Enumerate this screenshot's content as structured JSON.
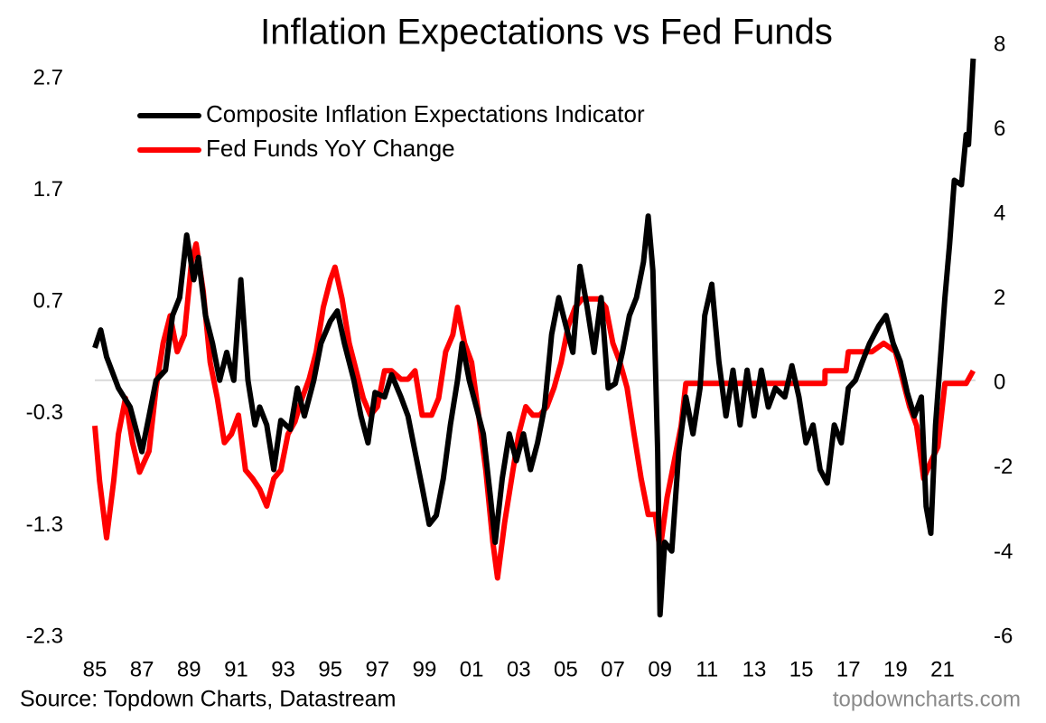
{
  "chart_data": {
    "type": "line",
    "title": "Inflation Expectations vs Fed Funds",
    "source": "Source: Topdown Charts, Datastream",
    "watermark": "topdowncharts.com",
    "legend": "upper left",
    "xlim": [
      1985,
      2022.4
    ],
    "xticks": [
      {
        "value": 1985,
        "label": "85"
      },
      {
        "value": 1987,
        "label": "87"
      },
      {
        "value": 1989,
        "label": "89"
      },
      {
        "value": 1991,
        "label": "91"
      },
      {
        "value": 1993,
        "label": "93"
      },
      {
        "value": 1995,
        "label": "95"
      },
      {
        "value": 1997,
        "label": "97"
      },
      {
        "value": 1999,
        "label": "99"
      },
      {
        "value": 2001,
        "label": "01"
      },
      {
        "value": 2003,
        "label": "03"
      },
      {
        "value": 2005,
        "label": "05"
      },
      {
        "value": 2007,
        "label": "07"
      },
      {
        "value": 2009,
        "label": "09"
      },
      {
        "value": 2011,
        "label": "11"
      },
      {
        "value": 2013,
        "label": "13"
      },
      {
        "value": 2015,
        "label": "15"
      },
      {
        "value": 2017,
        "label": "17"
      },
      {
        "value": 2019,
        "label": "19"
      },
      {
        "value": 2021,
        "label": "21"
      }
    ],
    "ylim": [
      -2.3,
      3.0
    ],
    "yticks": [
      -2.3,
      -1.3,
      -0.3,
      0.7,
      1.7,
      2.7
    ],
    "y2lim": [
      -6,
      8
    ],
    "y2ticks": [
      -6,
      -4,
      -2,
      0,
      2,
      4,
      6,
      8
    ],
    "series": [
      {
        "name": "Composite Inflation Expectations Indicator",
        "color": "#000000",
        "axis": "y",
        "x": [
          1985.0,
          1985.25,
          1985.5,
          1986.0,
          1986.5,
          1987.0,
          1987.3,
          1987.6,
          1988.0,
          1988.3,
          1988.6,
          1988.9,
          1989.2,
          1989.4,
          1989.7,
          1990.0,
          1990.3,
          1990.6,
          1990.9,
          1991.2,
          1991.5,
          1991.8,
          1992.0,
          1992.3,
          1992.6,
          1992.9,
          1993.3,
          1993.6,
          1993.9,
          1994.3,
          1994.6,
          1995.0,
          1995.3,
          1995.6,
          1996.0,
          1996.3,
          1996.6,
          1996.9,
          1997.3,
          1997.6,
          1998.0,
          1998.3,
          1998.6,
          1998.9,
          1999.2,
          1999.5,
          1999.8,
          2000.1,
          2000.4,
          2000.6,
          2000.9,
          2001.2,
          2001.5,
          2001.8,
          2002.0,
          2002.3,
          2002.6,
          2002.9,
          2003.2,
          2003.5,
          2003.8,
          2004.1,
          2004.4,
          2004.7,
          2005.0,
          2005.3,
          2005.6,
          2005.9,
          2006.2,
          2006.5,
          2006.8,
          2007.1,
          2007.4,
          2007.7,
          2008.0,
          2008.3,
          2008.5,
          2008.7,
          2008.9,
          2009.0,
          2009.2,
          2009.5,
          2009.8,
          2010.1,
          2010.4,
          2010.7,
          2010.9,
          2011.2,
          2011.5,
          2011.8,
          2012.1,
          2012.4,
          2012.7,
          2013.0,
          2013.3,
          2013.6,
          2013.9,
          2014.3,
          2014.6,
          2014.9,
          2015.2,
          2015.5,
          2015.8,
          2016.1,
          2016.4,
          2016.7,
          2017.0,
          2017.3,
          2017.6,
          2017.9,
          2018.3,
          2018.6,
          2018.9,
          2019.2,
          2019.5,
          2019.8,
          2020.1,
          2020.3,
          2020.5,
          2020.7,
          2020.9,
          2021.1,
          2021.3,
          2021.5,
          2021.8,
          2022.0,
          2022.1,
          2022.3
        ],
        "values": [
          0.29,
          0.45,
          0.21,
          -0.07,
          -0.24,
          -0.64,
          -0.32,
          0.0,
          0.09,
          0.58,
          0.74,
          1.3,
          0.9,
          1.1,
          0.58,
          0.33,
          0.0,
          0.25,
          0.0,
          0.9,
          0.0,
          -0.4,
          -0.24,
          -0.4,
          -0.8,
          -0.36,
          -0.44,
          -0.07,
          -0.32,
          0.0,
          0.33,
          0.53,
          0.62,
          0.33,
          0.0,
          -0.32,
          -0.56,
          -0.11,
          -0.15,
          0.05,
          -0.15,
          -0.32,
          -0.64,
          -0.96,
          -1.29,
          -1.21,
          -0.88,
          -0.4,
          0.0,
          0.33,
          0.0,
          -0.24,
          -0.48,
          -1.05,
          -1.45,
          -0.88,
          -0.48,
          -0.72,
          -0.48,
          -0.8,
          -0.56,
          -0.24,
          0.41,
          0.74,
          0.49,
          0.25,
          1.02,
          0.66,
          0.25,
          0.74,
          -0.07,
          -0.03,
          0.25,
          0.58,
          0.74,
          1.06,
          1.47,
          0.98,
          -0.64,
          -2.1,
          -1.45,
          -1.53,
          -0.64,
          -0.15,
          -0.48,
          -0.07,
          0.58,
          0.86,
          0.17,
          -0.32,
          0.09,
          -0.4,
          0.09,
          -0.32,
          0.09,
          -0.24,
          -0.07,
          -0.15,
          0.13,
          -0.15,
          -0.56,
          -0.4,
          -0.8,
          -0.92,
          -0.4,
          -0.56,
          -0.07,
          0.0,
          0.17,
          0.33,
          0.49,
          0.58,
          0.33,
          0.17,
          -0.11,
          -0.32,
          -0.15,
          -1.13,
          -1.37,
          -0.4,
          0.17,
          0.74,
          1.22,
          1.79,
          1.75,
          2.2,
          2.11,
          2.88
        ]
      },
      {
        "name": "Fed Funds YoY Change",
        "color": "#ff0000",
        "axis": "y2",
        "x": [
          1985.0,
          1985.2,
          1985.5,
          1985.8,
          1986.0,
          1986.3,
          1986.6,
          1986.9,
          1987.3,
          1987.6,
          1987.9,
          1988.2,
          1988.5,
          1988.8,
          1989.1,
          1989.3,
          1989.6,
          1989.9,
          1990.2,
          1990.5,
          1990.8,
          1991.1,
          1991.4,
          1991.7,
          1992.0,
          1992.3,
          1992.6,
          1992.9,
          1993.2,
          1993.5,
          1993.8,
          1994.1,
          1994.4,
          1994.7,
          1995.0,
          1995.2,
          1995.5,
          1995.8,
          1996.1,
          1996.4,
          1996.7,
          1997.0,
          1997.3,
          1997.6,
          1998.0,
          1998.3,
          1998.6,
          1998.9,
          1999.3,
          1999.6,
          1999.9,
          2000.2,
          2000.4,
          2000.7,
          2001.0,
          2001.3,
          2001.6,
          2001.9,
          2002.1,
          2002.4,
          2002.7,
          2003.0,
          2003.3,
          2003.6,
          2003.9,
          2004.2,
          2004.5,
          2004.8,
          2005.1,
          2005.4,
          2005.7,
          2006.0,
          2006.4,
          2006.7,
          2007.0,
          2007.3,
          2007.6,
          2007.9,
          2008.2,
          2008.5,
          2008.8,
          2009.0,
          2009.3,
          2009.6,
          2009.9,
          2010.1,
          2016.0,
          2016.01,
          2016.9,
          2017.0,
          2018.0,
          2018.5,
          2019.0,
          2019.3,
          2019.6,
          2019.9,
          2020.2,
          2020.5,
          2020.8,
          2021.1,
          2022.0,
          2022.3
        ],
        "values": [
          -1.0,
          -2.3,
          -3.65,
          -2.3,
          -1.2,
          -0.35,
          -1.4,
          -2.1,
          -1.6,
          -0.1,
          0.95,
          1.6,
          0.75,
          1.15,
          2.85,
          3.3,
          2.2,
          0.5,
          -0.35,
          -1.4,
          -1.2,
          -0.75,
          -2.05,
          -2.25,
          -2.5,
          -2.9,
          -2.25,
          -2.05,
          -1.2,
          -0.9,
          -0.35,
          0.1,
          0.75,
          1.8,
          2.45,
          2.75,
          2.0,
          0.95,
          0.3,
          -0.35,
          -0.75,
          -0.55,
          0.3,
          0.3,
          0.1,
          0.1,
          0.3,
          -0.75,
          -0.75,
          -0.35,
          0.75,
          1.15,
          1.8,
          0.95,
          0.5,
          -0.75,
          -2.05,
          -3.75,
          -4.6,
          -3.3,
          -2.25,
          -1.2,
          -0.55,
          -0.75,
          -0.75,
          -0.55,
          -0.1,
          0.5,
          1.35,
          1.8,
          2.0,
          2.0,
          2.0,
          1.8,
          0.95,
          0.5,
          -0.1,
          -1.2,
          -2.25,
          -3.1,
          -3.1,
          -3.95,
          -2.7,
          -1.85,
          -1.0,
          0,
          0,
          0.3,
          0.3,
          0.75,
          0.75,
          0.95,
          0.75,
          0.1,
          -0.55,
          -1.0,
          -2.25,
          -1.85,
          -1.5,
          0,
          0,
          0.3
        ]
      }
    ]
  }
}
